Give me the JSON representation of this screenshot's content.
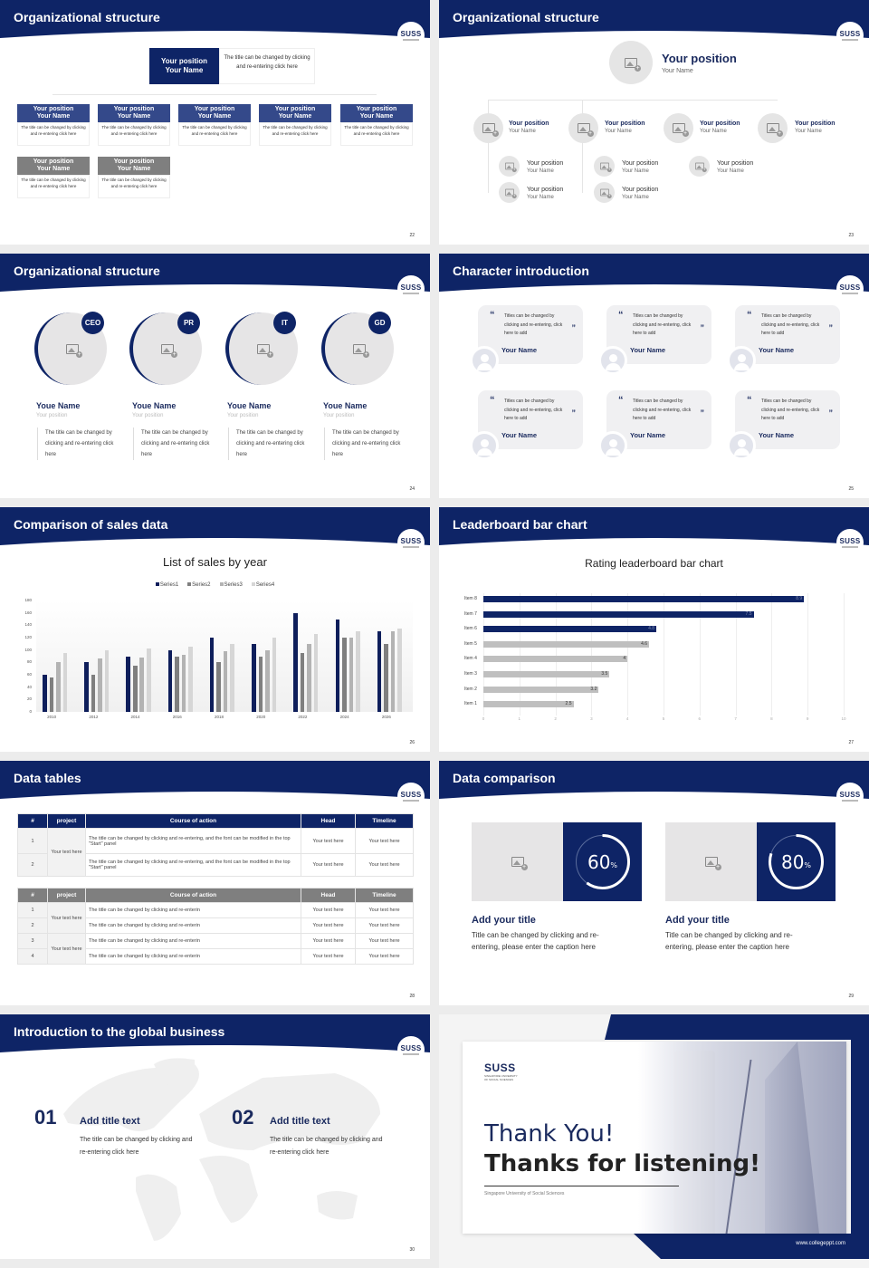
{
  "colors": {
    "navy": "#0e2466",
    "mid_blue": "#34498a",
    "gray": "#7f7f7f",
    "light_gray": "#e6e5e6"
  },
  "logo": {
    "text": "SUSS",
    "subtitle": "SINGAPORE UNIVERSITY OF SOCIAL SCIENCES"
  },
  "slides": [
    {
      "title": "Organizational structure",
      "page": "22",
      "top": {
        "position": "Your position",
        "name": "Your Name",
        "desc": "The title can be changed by clicking and re-entering click here"
      },
      "row1": [
        {
          "position": "Your position",
          "name": "Your Name",
          "desc": "The title can be changed by clicking and re-entering click here"
        },
        {
          "position": "Your position",
          "name": "Your Name",
          "desc": "The title can be changed by clicking and re-entering click here"
        },
        {
          "position": "Your position",
          "name": "Your Name",
          "desc": "The title can be changed by clicking and re-entering click here"
        },
        {
          "position": "Your position",
          "name": "Your Name",
          "desc": "The title can be changed by clicking and re-entering click here"
        },
        {
          "position": "Your position",
          "name": "Your Name",
          "desc": "The title can be changed by clicking and re-entering click here"
        }
      ],
      "row2": [
        {
          "position": "Your position",
          "name": "Your Name",
          "desc": "The title can be changed by clicking and re-entering click here"
        },
        {
          "position": "Your position",
          "name": "Your Name",
          "desc": "The title can be changed by clicking and re-entering click here"
        }
      ]
    },
    {
      "title": "Organizational structure",
      "page": "23",
      "top": {
        "position": "Your position",
        "name": "Your Name"
      },
      "level2": [
        {
          "position": "Your position",
          "name": "Your Name"
        },
        {
          "position": "Your position",
          "name": "Your Name"
        },
        {
          "position": "Your position",
          "name": "Your Name"
        },
        {
          "position": "Your position",
          "name": "Your Name"
        }
      ],
      "level3": [
        {
          "position": "Your position",
          "name": "Your Name"
        },
        {
          "position": "Your position",
          "name": "Your Name"
        },
        {
          "position": "Your position",
          "name": "Your Name"
        },
        {
          "position": "Your position",
          "name": "Your Name"
        },
        {
          "position": "Your position",
          "name": "Your Name"
        }
      ]
    },
    {
      "title": "Organizational structure",
      "page": "24",
      "people": [
        {
          "badge": "CEO",
          "name": "Youe Name",
          "position": "Your position",
          "desc": "The title can be changed by clicking and re-entering click here"
        },
        {
          "badge": "PR",
          "name": "Youe Name",
          "position": "Your position",
          "desc": "The title can be changed by clicking and re-entering click here"
        },
        {
          "badge": "IT",
          "name": "Youe Name",
          "position": "Your position",
          "desc": "The title can be changed by clicking and re-entering click here"
        },
        {
          "badge": "GD",
          "name": "Youe Name",
          "position": "Your position",
          "desc": "The title can be changed by clicking and re-entering click here"
        }
      ]
    },
    {
      "title": "Character introduction",
      "page": "25",
      "quotes": [
        {
          "text": "Titles can be changed by clicking and re-entering, click here to add",
          "name": "Your Name"
        },
        {
          "text": "Titles can be changed by clicking and re-entering, click here to add",
          "name": "Your Name"
        },
        {
          "text": "Titles can be changed by clicking and re-entering, click here to add",
          "name": "Your Name"
        },
        {
          "text": "Titles can be changed by clicking and re-entering, click here to add",
          "name": "Your Name"
        },
        {
          "text": "Titles can be changed by clicking and re-entering, click here to add",
          "name": "Your Name"
        },
        {
          "text": "Titles can be changed by clicking and re-entering, click here to add",
          "name": "Your Name"
        }
      ],
      "open_quote": "“",
      "close_quote": "”"
    },
    {
      "title": "Comparison of sales data",
      "page": "26"
    },
    {
      "title": "Leaderboard bar chart",
      "page": "27"
    },
    {
      "title": "Data tables",
      "page": "28",
      "headers": [
        "#",
        "project",
        "Course of action",
        "Head",
        "Timeline"
      ],
      "table1": {
        "project": "Your text here",
        "rows": [
          {
            "num": "1",
            "action": "The title can be changed by clicking and re-entering, and the font can be modified in the top \"Start\" panel",
            "head": "Your text here",
            "timeline": "Your text here"
          },
          {
            "num": "2",
            "action": "The title can be changed by clicking and re-entering, and the font can be modified in the top \"Start\" panel",
            "head": "Your text here",
            "timeline": "Your text here"
          }
        ]
      },
      "table2": {
        "projects": [
          "Your text here",
          "Your text here"
        ],
        "rows": [
          {
            "num": "1",
            "action": "The title can be changed by clicking and re-enterin",
            "head": "Your text here",
            "timeline": "Your text here"
          },
          {
            "num": "2",
            "action": "The title can be changed by clicking and re-enterin",
            "head": "Your text here",
            "timeline": "Your text here"
          },
          {
            "num": "3",
            "action": "The title can be changed by clicking and re-enterin",
            "head": "Your text here",
            "timeline": "Your text here"
          },
          {
            "num": "4",
            "action": "The title can be changed by clicking and re-enterin",
            "head": "Your text here",
            "timeline": "Your text here"
          }
        ]
      }
    },
    {
      "title": "Data comparison",
      "page": "29",
      "items": [
        {
          "value": "60",
          "unit": "%",
          "percent": 60,
          "title": "Add your title",
          "text": "Title can be changed by clicking and re-entering, please enter the caption here"
        },
        {
          "value": "80",
          "unit": "%",
          "percent": 80,
          "title": "Add your title",
          "text": "Title can be changed by clicking and re-entering, please enter the caption here"
        }
      ]
    },
    {
      "title": "Introduction to the global business",
      "page": "30",
      "items": [
        {
          "num": "01",
          "title": "Add title text",
          "text": "The title can be changed by clicking and re-entering click here"
        },
        {
          "num": "02",
          "title": "Add title text",
          "text": "The title can be changed by clicking and re-entering click here"
        }
      ]
    },
    {
      "thank_you": "Thank You!",
      "thanks_listening": "Thanks for listening!",
      "university": "Singapore University of Social Sciences",
      "website": "www.collegeppt.com"
    }
  ],
  "chart_data": [
    {
      "type": "bar",
      "title": "List of sales by year",
      "xlabel": "",
      "ylabel": "",
      "categories": [
        "2010",
        "2012",
        "2014",
        "2016",
        "2018",
        "2020",
        "2022",
        "2024",
        "2026"
      ],
      "series": [
        {
          "name": "Series1",
          "color": "#0e1e5b",
          "values": [
            60,
            80,
            90,
            100,
            120,
            110,
            160,
            150,
            130
          ]
        },
        {
          "name": "Series2",
          "color": "#7f7f7f",
          "values": [
            55,
            60,
            75,
            90,
            80,
            90,
            95,
            120,
            110
          ]
        },
        {
          "name": "Series3",
          "color": "#b3b3b3",
          "values": [
            80,
            86,
            88,
            92,
            98,
            100,
            110,
            120,
            130
          ]
        },
        {
          "name": "Series4",
          "color": "#d6d6d6",
          "values": [
            95,
            99,
            102,
            105,
            110,
            120,
            126,
            130,
            135
          ]
        }
      ],
      "ylim": [
        0,
        180
      ],
      "yticks": [
        0,
        20,
        40,
        60,
        80,
        100,
        120,
        140,
        160,
        180
      ],
      "grid": false,
      "legend_position": "top"
    },
    {
      "type": "bar",
      "orientation": "horizontal",
      "title": "Rating leaderboard bar chart",
      "categories": [
        "Item 8",
        "Item 7",
        "Item 6",
        "Item 5",
        "Item 4",
        "Item 3",
        "Item 2",
        "Item 1"
      ],
      "values": [
        8.9,
        7.5,
        4.8,
        4.6,
        4,
        3.5,
        3.2,
        2.5
      ],
      "labels": [
        "8.9",
        "7.5",
        "4.8",
        "4.6",
        "4",
        "3.5",
        "3.2",
        "2.5"
      ],
      "highlight_color": "#0e2466",
      "base_color": "#bfbfbf",
      "xlim": [
        0,
        10
      ],
      "xticks": [
        0,
        1,
        2,
        3,
        4,
        5,
        6,
        7,
        8,
        9,
        10
      ],
      "grid": true
    }
  ]
}
